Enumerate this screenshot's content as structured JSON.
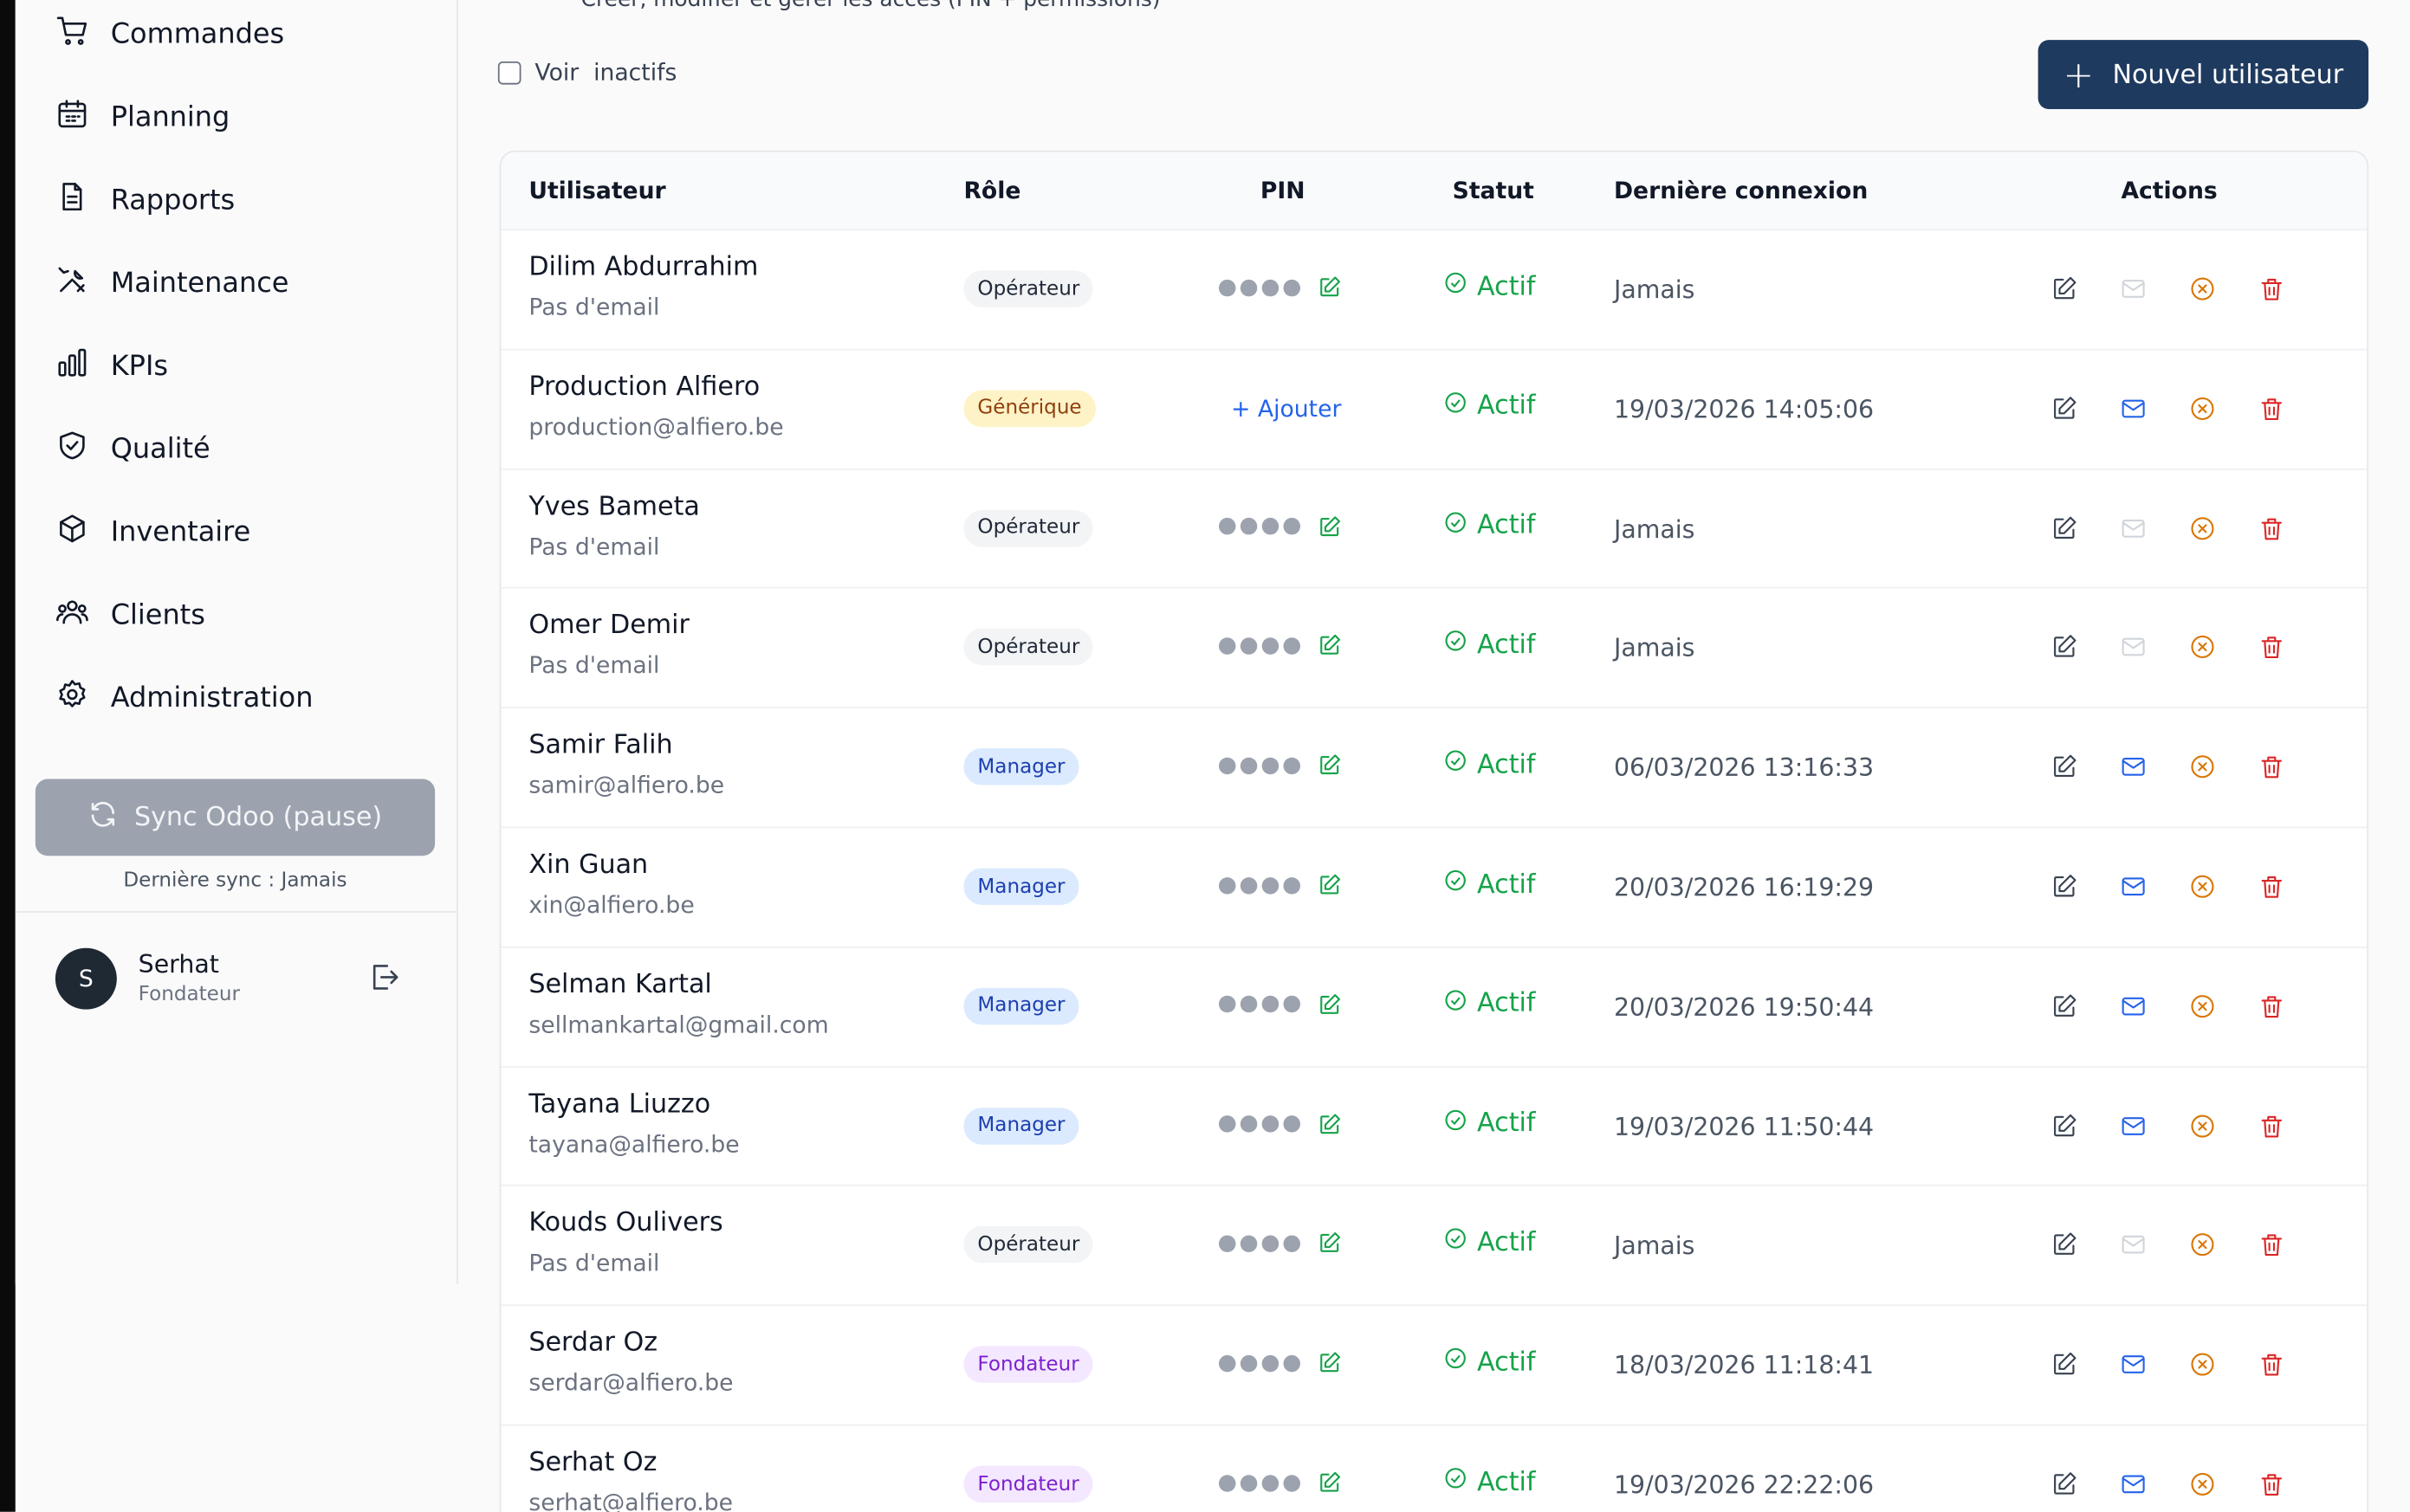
{
  "sidebar": {
    "items": [
      {
        "label": "Commandes",
        "icon": "cart-icon"
      },
      {
        "label": "Planning",
        "icon": "calendar-icon"
      },
      {
        "label": "Rapports",
        "icon": "document-icon"
      },
      {
        "label": "Maintenance",
        "icon": "tools-icon"
      },
      {
        "label": "KPIs",
        "icon": "bar-chart-icon"
      },
      {
        "label": "Qualité",
        "icon": "shield-check-icon"
      },
      {
        "label": "Inventaire",
        "icon": "box-icon"
      },
      {
        "label": "Clients",
        "icon": "users-icon"
      },
      {
        "label": "Administration",
        "icon": "gear-icon"
      }
    ],
    "sync_label": "Sync Odoo (pause)",
    "sync_note": "Dernière sync : Jamais",
    "user": {
      "initial": "S",
      "name": "Serhat",
      "role": "Fondateur"
    }
  },
  "main": {
    "subtitle": "Créer, modifier et gérer les accès (PIN + permissions)",
    "show_inactive_label": "Voir  inactifs",
    "new_user_label": "Nouvel utilisateur",
    "table": {
      "headers": {
        "user": "Utilisateur",
        "role": "Rôle",
        "pin": "PIN",
        "status": "Statut",
        "last_login": "Dernière connexion",
        "actions": "Actions"
      },
      "add_pin_label": "+ Ajouter",
      "rows": [
        {
          "name": "Dilim Abdurrahim",
          "email": "Pas d'email",
          "role": "Opérateur",
          "role_kind": "operateur",
          "has_pin": true,
          "status": "Actif",
          "last_login": "Jamais",
          "has_email": false
        },
        {
          "name": "Production Alfiero",
          "email": "production@alfiero.be",
          "role": "Générique",
          "role_kind": "generique",
          "has_pin": false,
          "status": "Actif",
          "last_login": "19/03/2026 14:05:06",
          "has_email": true
        },
        {
          "name": "Yves Bameta",
          "email": "Pas d'email",
          "role": "Opérateur",
          "role_kind": "operateur",
          "has_pin": true,
          "status": "Actif",
          "last_login": "Jamais",
          "has_email": false
        },
        {
          "name": "Omer Demir",
          "email": "Pas d'email",
          "role": "Opérateur",
          "role_kind": "operateur",
          "has_pin": true,
          "status": "Actif",
          "last_login": "Jamais",
          "has_email": false
        },
        {
          "name": "Samir Falih",
          "email": "samir@alfiero.be",
          "role": "Manager",
          "role_kind": "manager",
          "has_pin": true,
          "status": "Actif",
          "last_login": "06/03/2026 13:16:33",
          "has_email": true
        },
        {
          "name": "Xin Guan",
          "email": "xin@alfiero.be",
          "role": "Manager",
          "role_kind": "manager",
          "has_pin": true,
          "status": "Actif",
          "last_login": "20/03/2026 16:19:29",
          "has_email": true
        },
        {
          "name": "Selman Kartal",
          "email": "sellmankartal@gmail.com",
          "role": "Manager",
          "role_kind": "manager",
          "has_pin": true,
          "status": "Actif",
          "last_login": "20/03/2026 19:50:44",
          "has_email": true
        },
        {
          "name": "Tayana Liuzzo",
          "email": "tayana@alfiero.be",
          "role": "Manager",
          "role_kind": "manager",
          "has_pin": true,
          "status": "Actif",
          "last_login": "19/03/2026 11:50:44",
          "has_email": true
        },
        {
          "name": "Kouds Oulivers",
          "email": "Pas d'email",
          "role": "Opérateur",
          "role_kind": "operateur",
          "has_pin": true,
          "status": "Actif",
          "last_login": "Jamais",
          "has_email": false
        },
        {
          "name": "Serdar Oz",
          "email": "serdar@alfiero.be",
          "role": "Fondateur",
          "role_kind": "fondateur",
          "has_pin": true,
          "status": "Actif",
          "last_login": "18/03/2026 11:18:41",
          "has_email": true
        },
        {
          "name": "Serhat Oz",
          "email": "serhat@alfiero.be",
          "role": "Fondateur",
          "role_kind": "fondateur",
          "has_pin": true,
          "status": "Actif",
          "last_login": "19/03/2026 22:22:06",
          "has_email": true
        }
      ]
    }
  },
  "colors": {
    "primary_button": "#1f3a5f",
    "status_active": "#16a34a",
    "badge_operateur_bg": "#f3f4f6",
    "badge_operateur_fg": "#1f2937",
    "badge_generique_bg": "#fef3c7",
    "badge_generique_fg": "#92400e",
    "badge_manager_bg": "#dbeafe",
    "badge_manager_fg": "#1e40af",
    "badge_fondateur_bg": "#f3e8ff",
    "badge_fondateur_fg": "#7e22ce",
    "mail_enabled": "#2563eb",
    "mail_disabled": "#d1d5db"
  }
}
